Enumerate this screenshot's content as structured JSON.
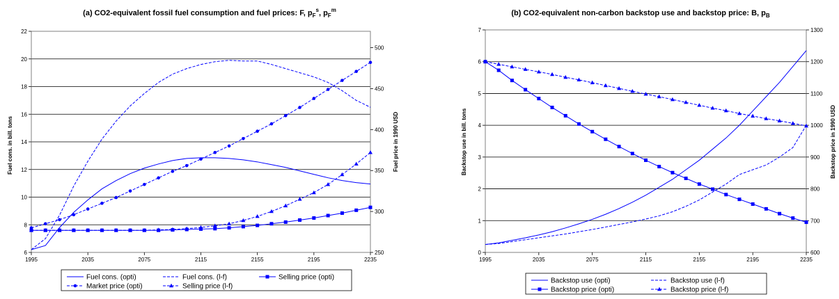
{
  "colors": {
    "series": "#0000ff",
    "grid": "#000000",
    "frame": "#808080",
    "background": "#ffffff"
  },
  "chart_data": [
    {
      "type": "line",
      "title_main": "(a) CO2-equivalent fossil fuel consumption and fuel prices: F, p",
      "title_sym1": "F",
      "title_sup1": "s",
      "title_sep": ", p",
      "title_sym2": "F",
      "title_sup2": "m",
      "ylabel_left": "Fuel cons. in bill. tons",
      "ylabel_right": "Fuel price in 1990 USD",
      "xlim": [
        1995,
        2235
      ],
      "ylim_left": [
        6,
        22
      ],
      "ylim_right": [
        250,
        520
      ],
      "x_ticks": [
        "1995",
        "2035",
        "2075",
        "2115",
        "2155",
        "2195",
        "2235"
      ],
      "y_ticks_left": [
        "6",
        "8",
        "10",
        "12",
        "14",
        "16",
        "18",
        "20",
        "22"
      ],
      "y_ticks_right": [
        "250",
        "300",
        "350",
        "400",
        "450",
        "500"
      ],
      "grid": "horizontal",
      "legend_position": "bottom",
      "x": [
        1995,
        2005,
        2015,
        2025,
        2035,
        2045,
        2055,
        2065,
        2075,
        2085,
        2095,
        2105,
        2115,
        2125,
        2135,
        2145,
        2155,
        2165,
        2175,
        2185,
        2195,
        2205,
        2215,
        2225,
        2235
      ],
      "series": [
        {
          "name": "Fuel cons. (opti)",
          "axis": "left",
          "style": "solid",
          "marker": "none",
          "values": [
            6.2,
            6.5,
            7.8,
            8.9,
            9.8,
            10.6,
            11.2,
            11.7,
            12.1,
            12.4,
            12.65,
            12.8,
            12.85,
            12.85,
            12.8,
            12.7,
            12.55,
            12.35,
            12.15,
            11.9,
            11.65,
            11.4,
            11.2,
            11.05,
            10.95
          ]
        },
        {
          "name": "Fuel cons. (l-f)",
          "axis": "left",
          "style": "dashed",
          "marker": "none",
          "values": [
            6.2,
            7.0,
            8.7,
            10.8,
            12.6,
            14.2,
            15.5,
            16.6,
            17.5,
            18.3,
            18.9,
            19.3,
            19.6,
            19.8,
            19.9,
            19.85,
            19.85,
            19.6,
            19.3,
            19.0,
            18.7,
            18.3,
            17.7,
            17.0,
            16.5
          ]
        },
        {
          "name": "Selling price (opti)",
          "axis": "right",
          "style": "solid",
          "marker": "square",
          "values": [
            277,
            277,
            277,
            277,
            277,
            277,
            277,
            277,
            277,
            277,
            277.5,
            278,
            278.5,
            279,
            280,
            281.5,
            283,
            285,
            287,
            289.5,
            292,
            295,
            298,
            301.5,
            305
          ]
        },
        {
          "name": "Market price (opti)",
          "axis": "right",
          "style": "dashed",
          "marker": "circle",
          "values": [
            280,
            285,
            290,
            296,
            303,
            310,
            317,
            325,
            333,
            341,
            349,
            356,
            364,
            372,
            380,
            389,
            398,
            407,
            417,
            427,
            438,
            449,
            460,
            471,
            482
          ]
        },
        {
          "name": "Selling price (l-f)",
          "axis": "right",
          "style": "dashed",
          "marker": "triangle",
          "values": [
            277,
            277,
            277,
            277,
            277,
            277,
            277,
            277,
            277,
            277.5,
            278,
            279,
            280.5,
            282.5,
            285,
            289,
            294,
            300,
            307,
            315,
            323,
            333,
            345,
            358,
            372
          ]
        }
      ]
    },
    {
      "type": "line",
      "title_main": "(b) CO2-equivalent non-carbon backstop use and backstop price: B, p",
      "title_sym1": "B",
      "ylabel_left": "Backstop use in bill. tons",
      "ylabel_right": "Backstop price in 1990 USD",
      "xlim": [
        1995,
        2235
      ],
      "ylim_left": [
        0,
        7
      ],
      "ylim_right": [
        600,
        1300
      ],
      "x_ticks": [
        "1995",
        "2035",
        "2075",
        "2115",
        "2155",
        "2195",
        "2235"
      ],
      "y_ticks_left": [
        "0",
        "1",
        "2",
        "3",
        "4",
        "5",
        "6",
        "7"
      ],
      "y_ticks_right": [
        "600",
        "700",
        "800",
        "900",
        "1000",
        "1100",
        "1200",
        "1300"
      ],
      "grid": "horizontal",
      "legend_position": "bottom",
      "x": [
        1995,
        2005,
        2015,
        2025,
        2035,
        2045,
        2055,
        2065,
        2075,
        2085,
        2095,
        2105,
        2115,
        2125,
        2135,
        2145,
        2155,
        2165,
        2175,
        2185,
        2195,
        2205,
        2215,
        2225,
        2235
      ],
      "series": [
        {
          "name": "Backstop use (opti)",
          "axis": "left",
          "style": "solid",
          "marker": "none",
          "values": [
            0.25,
            0.3,
            0.38,
            0.46,
            0.55,
            0.65,
            0.77,
            0.9,
            1.04,
            1.2,
            1.38,
            1.58,
            1.8,
            2.05,
            2.3,
            2.6,
            2.9,
            3.25,
            3.6,
            4.0,
            4.45,
            4.9,
            5.35,
            5.85,
            6.35
          ]
        },
        {
          "name": "Backstop use (l-f)",
          "axis": "left",
          "style": "dashed",
          "marker": "none",
          "values": [
            0.25,
            0.28,
            0.34,
            0.4,
            0.46,
            0.52,
            0.58,
            0.65,
            0.72,
            0.8,
            0.88,
            0.96,
            1.05,
            1.15,
            1.28,
            1.45,
            1.65,
            1.9,
            2.15,
            2.45,
            2.6,
            2.75,
            3.0,
            3.3,
            4.0
          ]
        },
        {
          "name": "Backstop price (opti)",
          "axis": "right",
          "style": "solid",
          "marker": "square",
          "values": [
            1200,
            1173,
            1141,
            1112,
            1084,
            1056,
            1030,
            1004,
            980,
            956,
            933,
            911,
            890,
            870,
            851,
            833,
            815,
            799,
            782,
            767,
            752,
            737,
            722,
            708,
            695
          ]
        },
        {
          "name": "Backstop price (l-f)",
          "axis": "right",
          "style": "dashed",
          "marker": "triangle",
          "values": [
            1200,
            1192,
            1184,
            1176,
            1168,
            1160,
            1151,
            1143,
            1134,
            1125,
            1116,
            1107,
            1098,
            1090,
            1081,
            1072,
            1063,
            1054,
            1046,
            1037,
            1029,
            1021,
            1014,
            1006,
            998
          ]
        }
      ]
    }
  ]
}
